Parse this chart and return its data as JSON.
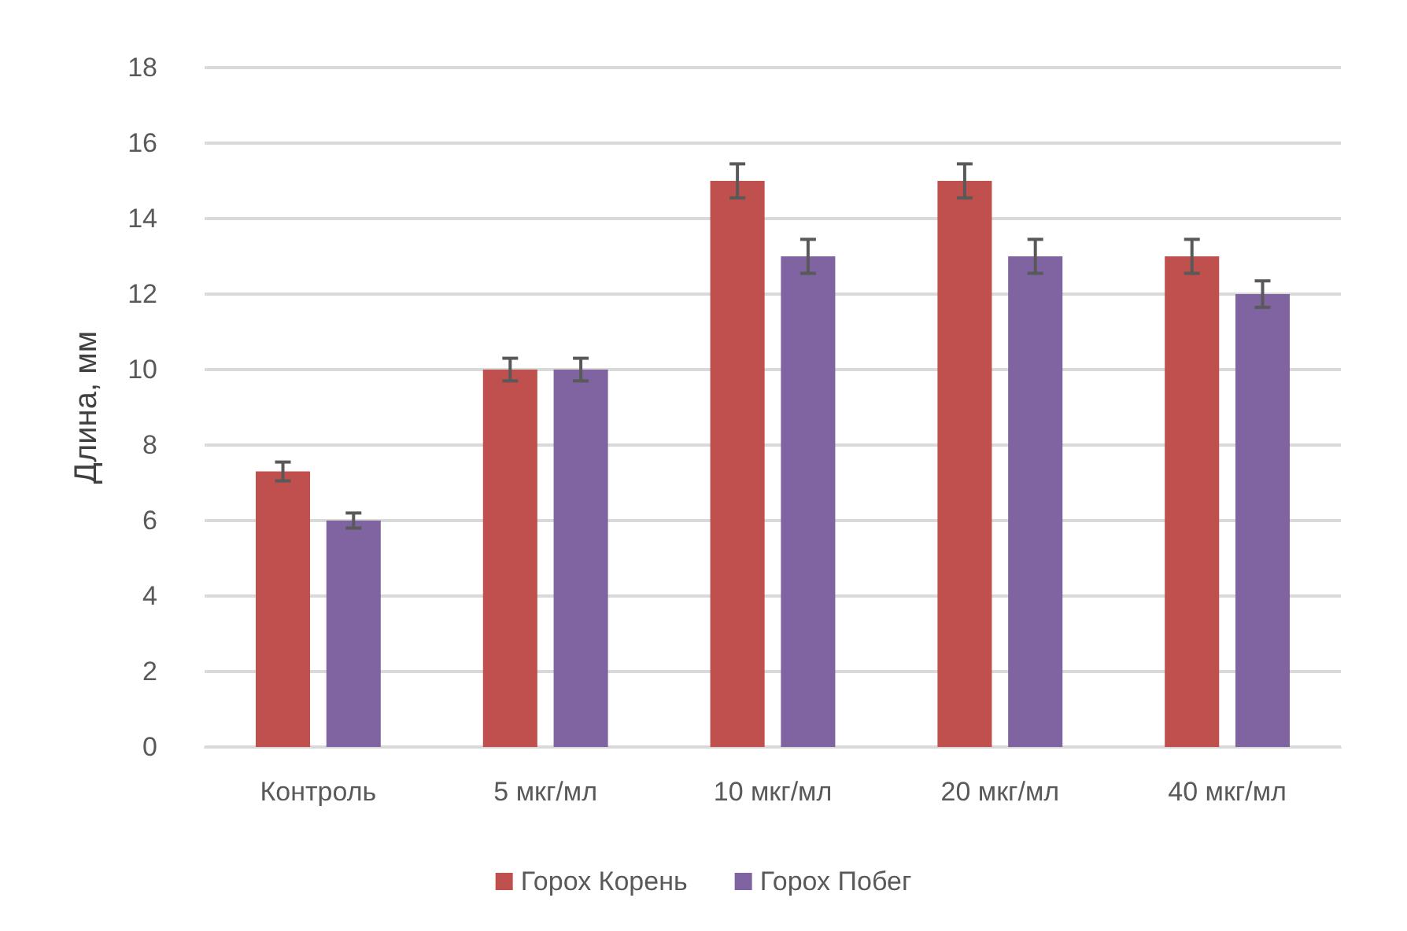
{
  "chart_data": {
    "type": "bar",
    "ylabel": "Длина, мм",
    "categories": [
      "Контроль",
      "5 мкг/мл",
      "10 мкг/мл",
      "20 мкг/мл",
      "40 мкг/мл"
    ],
    "series": [
      {
        "name": "Горох Корень",
        "color": "#c0504d",
        "values": [
          7.3,
          10,
          15,
          15,
          13
        ],
        "errors": [
          0.25,
          0.3,
          0.45,
          0.45,
          0.45
        ]
      },
      {
        "name": "Горох Побег",
        "color": "#8064a2",
        "values": [
          6,
          10,
          13,
          13,
          12
        ],
        "errors": [
          0.2,
          0.3,
          0.45,
          0.45,
          0.35
        ]
      }
    ],
    "ylim": [
      0,
      18
    ],
    "yticks": [
      0,
      2,
      4,
      6,
      8,
      10,
      12,
      14,
      16,
      18
    ],
    "grid": "y",
    "legend": "bottom"
  }
}
